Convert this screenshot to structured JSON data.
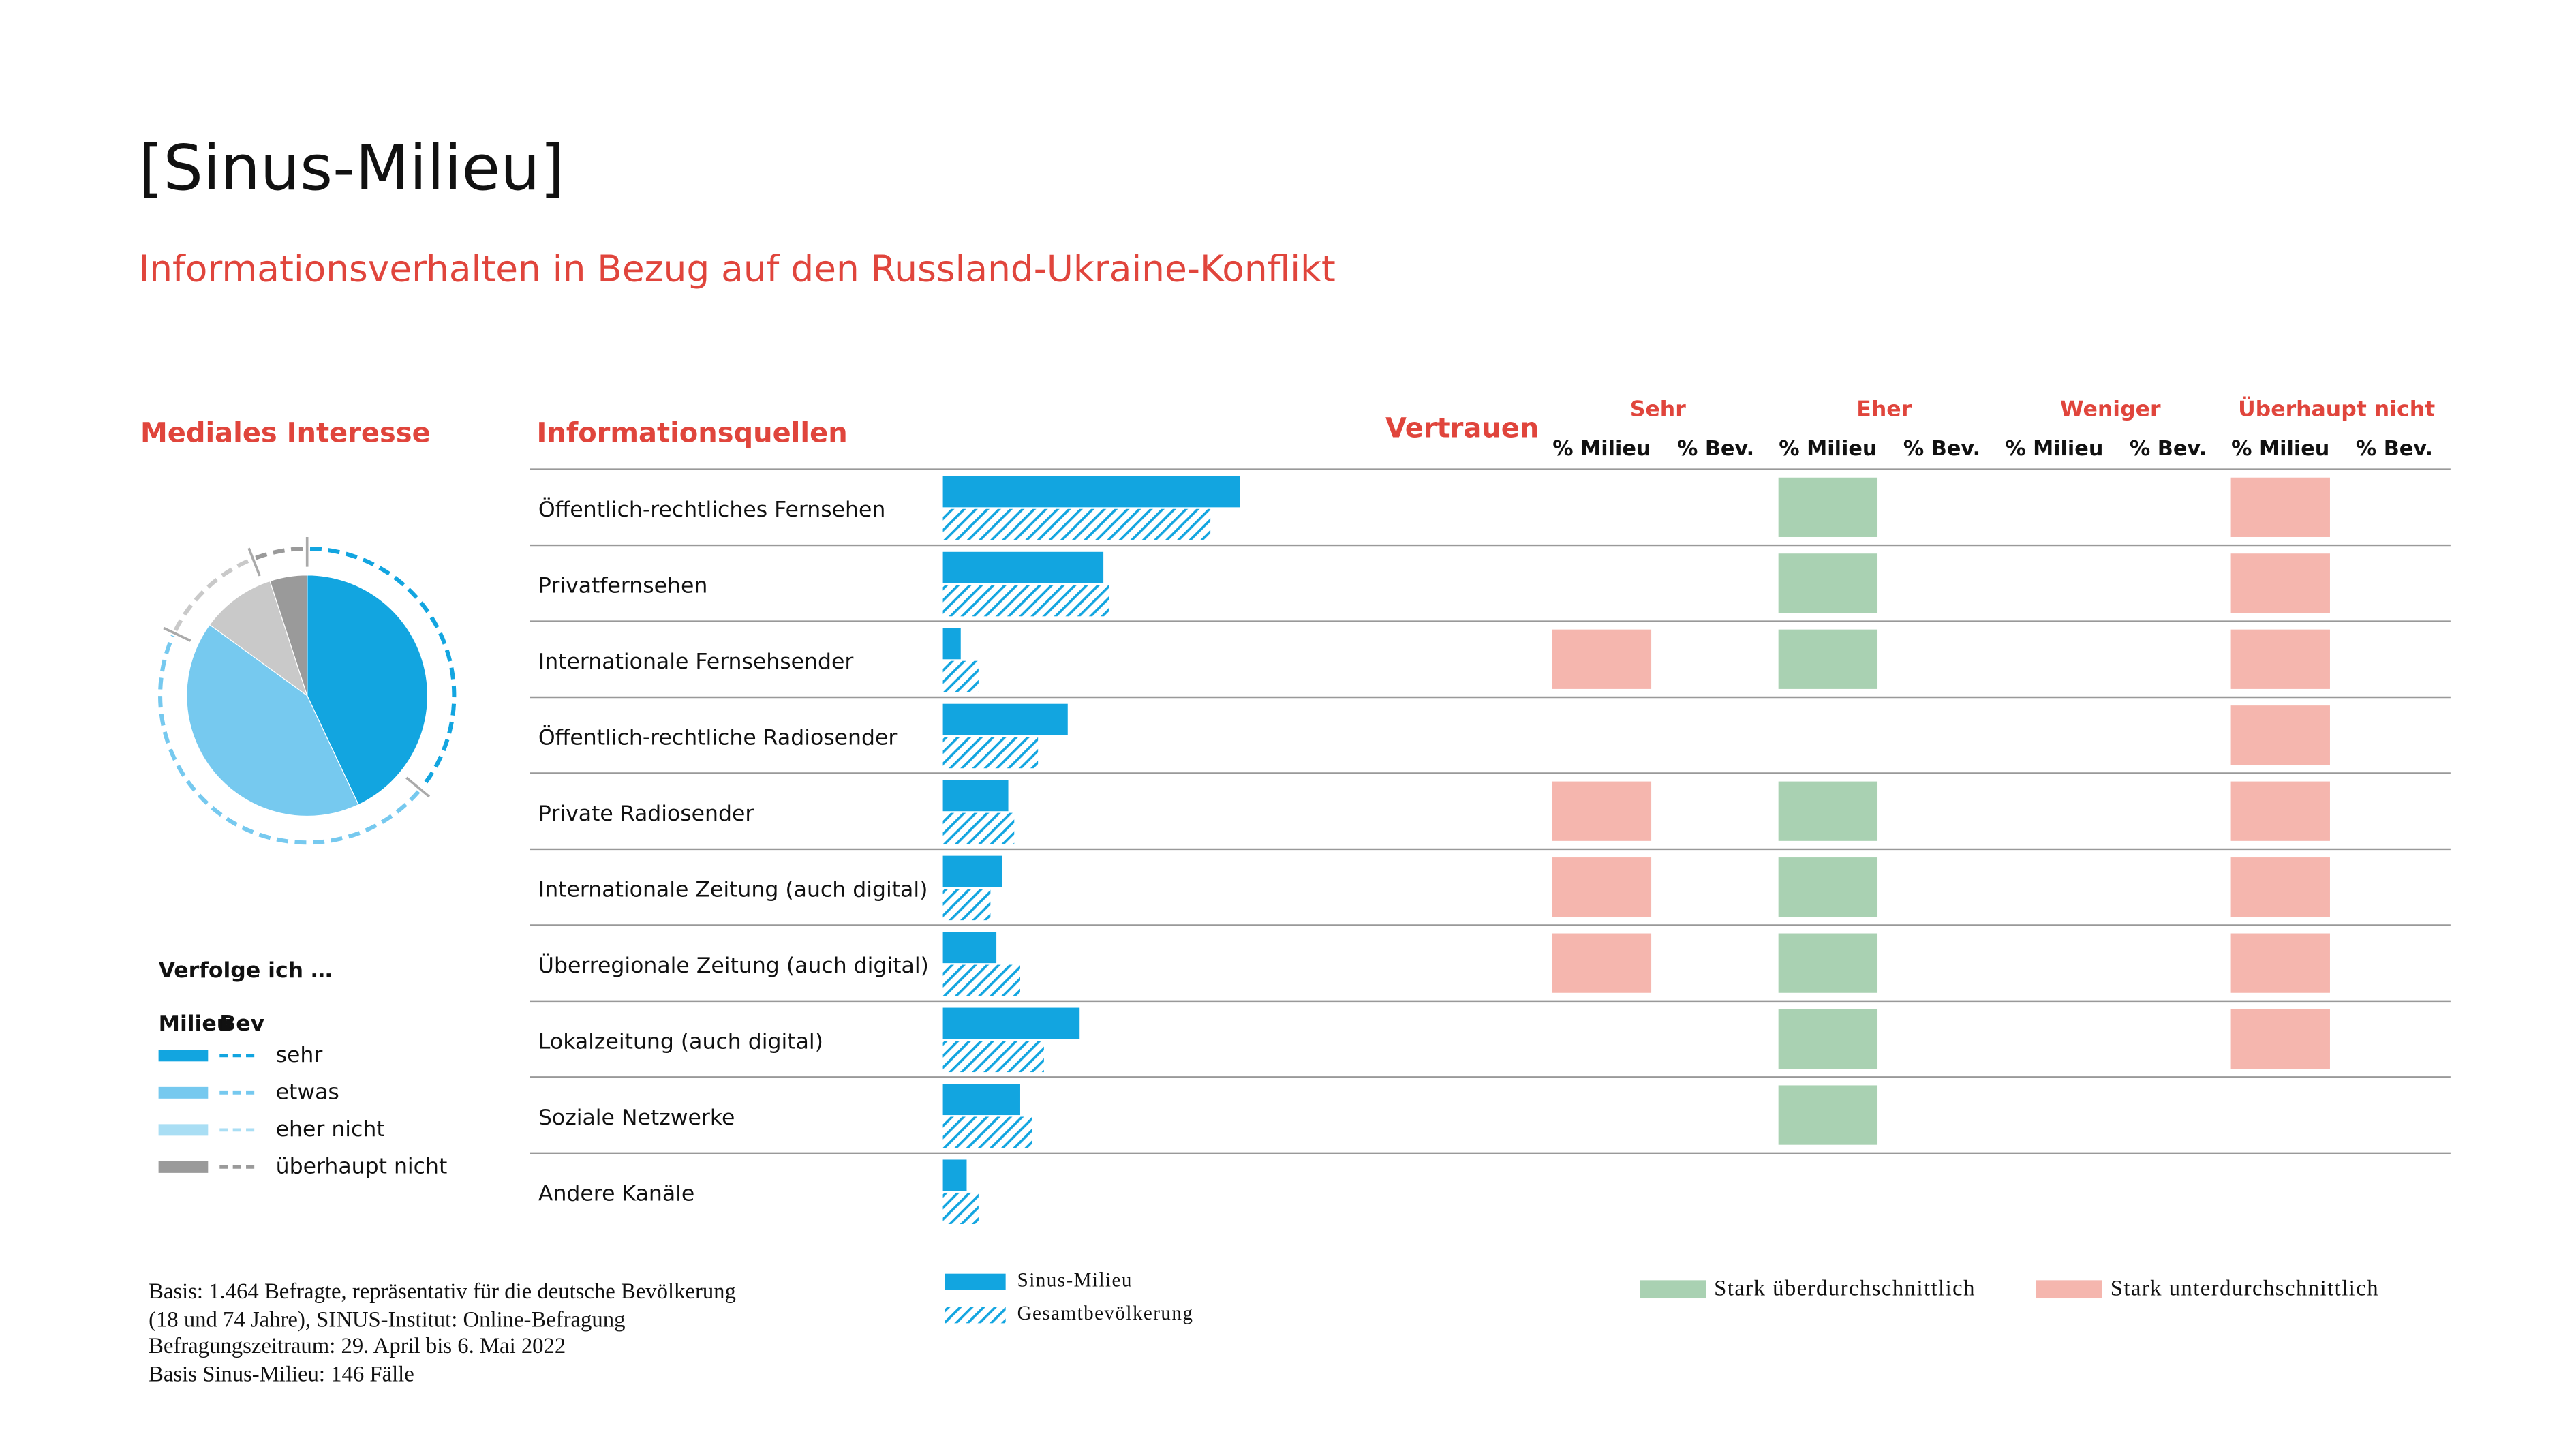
{
  "title": "[Sinus-Milieu]",
  "subtitle": "Informationsverhalten in Bezug auf den Russland-Ukraine-Konflikt",
  "chart_data": [
    {
      "type": "pie",
      "title": "Mediales Interesse",
      "legend_title": "Verfolge ich …",
      "categories": [
        "sehr",
        "etwas",
        "eher nicht",
        "überhaupt nicht"
      ],
      "colors": [
        "#12a5e0",
        "#76c9ef",
        "#c9c9c9",
        "#9a9a9a"
      ],
      "legend_colors": [
        "#12a5e0",
        "#76c9ef",
        "#a9def4",
        "#9a9a9a"
      ],
      "series": [
        {
          "name": "Milieu",
          "style": "solid",
          "values": [
            43,
            42,
            10,
            5
          ]
        },
        {
          "name": "Bev",
          "style": "dashed",
          "values": [
            36,
            46,
            12,
            6
          ]
        }
      ]
    },
    {
      "type": "bar",
      "title": "Informationsquellen",
      "orientation": "horizontal",
      "categories": [
        "Öffentlich-rechtliches Fernsehen",
        "Privatfernsehen",
        "Internationale Fernsehsender",
        "Öffentlich-rechtliche Radiosender",
        "Private Radiosender",
        "Internationale Zeitung (auch digital)",
        "Überregionale Zeitung (auch digital)",
        "Lokalzeitung (auch digital)",
        "Soziale Netzwerke",
        "Andere Kanäle"
      ],
      "xlim": [
        0,
        50
      ],
      "series": [
        {
          "name": "Sinus-Milieu",
          "color": "#12a5e0",
          "pattern": "solid",
          "values": [
            50,
            27,
            3,
            21,
            11,
            10,
            9,
            23,
            13,
            4
          ]
        },
        {
          "name": "Gesamtbevölkerung",
          "color": "#12a5e0",
          "pattern": "hatch",
          "values": [
            45,
            28,
            6,
            16,
            12,
            8,
            13,
            17,
            15,
            6
          ]
        }
      ]
    }
  ],
  "trust_table": {
    "title": "Vertrauen",
    "groups": [
      "Sehr",
      "Eher",
      "Weniger",
      "Überhaupt nicht"
    ],
    "subheaders": [
      "% Milieu",
      "% Bev."
    ],
    "legend": [
      {
        "name": "Stark überdurchschnittlich",
        "color": "#a9d1b2"
      },
      {
        "name": "Stark unterdurchschnittlich",
        "color": "#f5b6ae"
      }
    ],
    "cells": [
      [
        null,
        null,
        0,
        null,
        null,
        null,
        1,
        null
      ],
      [
        null,
        null,
        0,
        null,
        null,
        null,
        1,
        null
      ],
      [
        1,
        null,
        0,
        null,
        null,
        null,
        1,
        null
      ],
      [
        null,
        null,
        null,
        null,
        null,
        null,
        1,
        null
      ],
      [
        1,
        null,
        0,
        null,
        null,
        null,
        1,
        null
      ],
      [
        1,
        null,
        0,
        null,
        null,
        null,
        1,
        null
      ],
      [
        1,
        null,
        0,
        null,
        null,
        null,
        1,
        null
      ],
      [
        null,
        null,
        0,
        null,
        null,
        null,
        1,
        null
      ],
      [
        null,
        null,
        0,
        null,
        null,
        null,
        null,
        null
      ],
      [
        null,
        null,
        null,
        null,
        null,
        null,
        null,
        null
      ]
    ]
  },
  "footnote": [
    "Basis: 1.464 Befragte, repräsentativ für die deutsche Bevölkerung",
    "(18 und 74 Jahre), SINUS-Institut: Online-Befragung",
    "Befragungszeitraum: 29. April bis 6. Mai 2022",
    "Basis Sinus-Milieu: 146 Fälle"
  ]
}
